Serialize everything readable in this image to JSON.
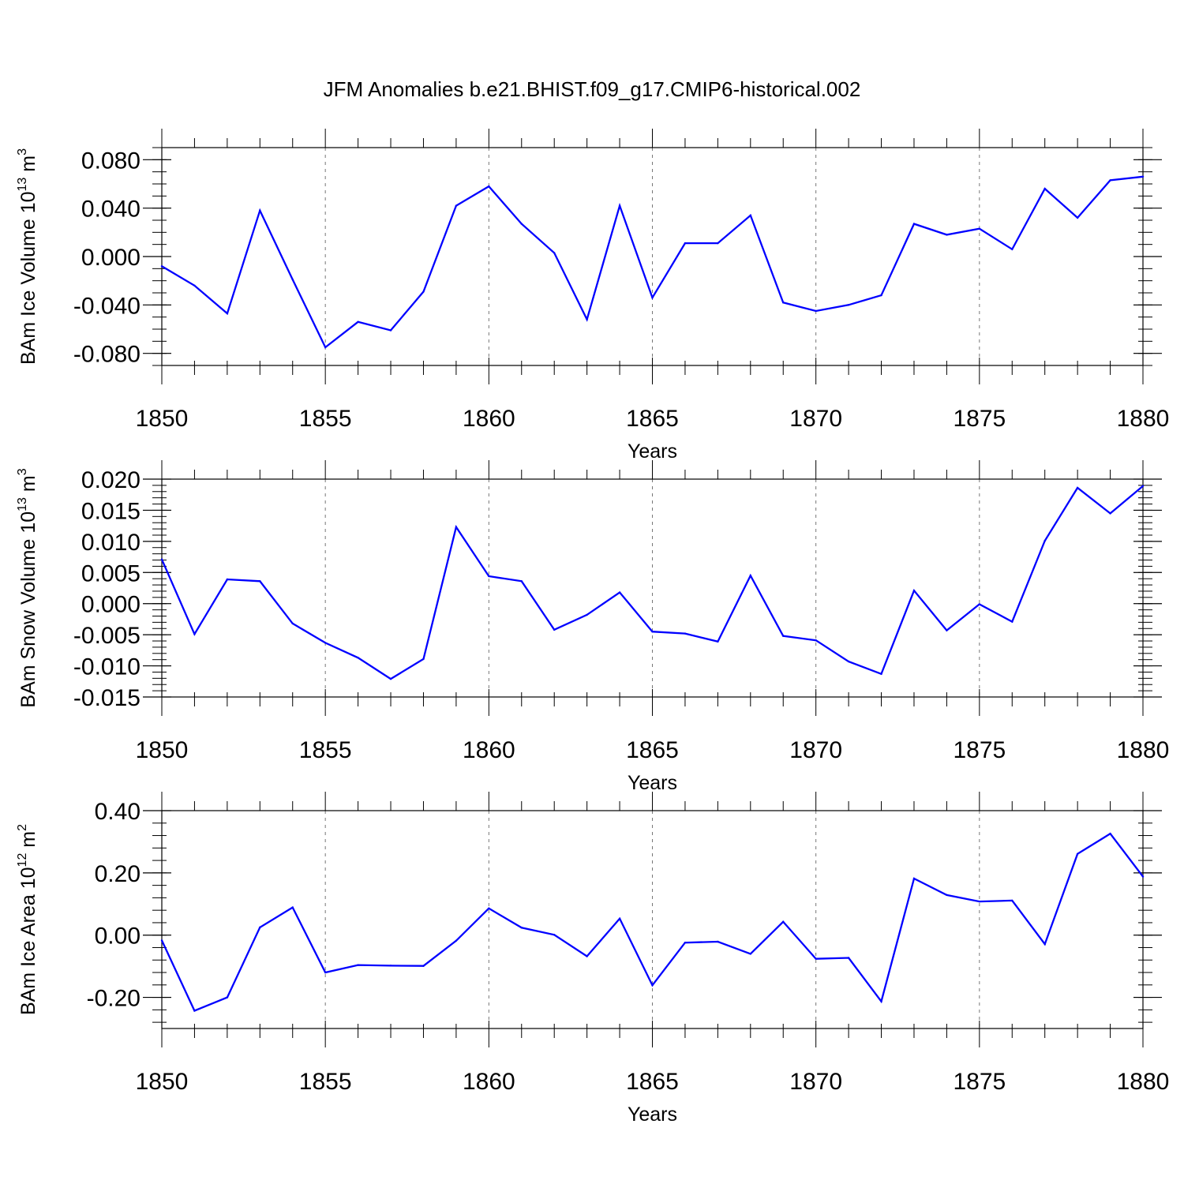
{
  "title": "JFM Anomalies b.e21.BHIST.f09_g17.CMIP6-historical.002",
  "colors": {
    "line": "#0000ff",
    "axis": "#000000",
    "grid": "#777777"
  },
  "chart_data": [
    {
      "type": "line",
      "title": "JFM Anomalies b.e21.BHIST.f09_g17.CMIP6-historical.002",
      "xlabel": "Years",
      "ylabel": "BAm Ice Volume 10",
      "ylabel_exponent": "13",
      "ylabel_unit": "m",
      "ylabel_unit_exponent": "3",
      "xlim": [
        1850,
        1880
      ],
      "ylim": [
        -0.09,
        0.09
      ],
      "xticks": [
        "1850",
        "1855",
        "1860",
        "1865",
        "1870",
        "1875",
        "1880"
      ],
      "yticks": [
        "0.080",
        "0.040",
        "0.000",
        "-0.040",
        "-0.080"
      ],
      "ytick_values": [
        0.08,
        0.04,
        0.0,
        -0.04,
        -0.08
      ],
      "ytick_minor_step": 0.01,
      "grid": "vertical dashed at major x ticks",
      "x": [
        1850,
        1851,
        1852,
        1853,
        1854,
        1855,
        1856,
        1857,
        1858,
        1859,
        1860,
        1861,
        1862,
        1863,
        1864,
        1865,
        1866,
        1867,
        1868,
        1869,
        1870,
        1871,
        1872,
        1873,
        1874,
        1875,
        1876,
        1877,
        1878,
        1879,
        1880
      ],
      "values": [
        -0.008,
        -0.024,
        -0.047,
        0.038,
        -0.019,
        -0.075,
        -0.054,
        -0.061,
        -0.029,
        0.042,
        0.058,
        0.027,
        0.003,
        -0.052,
        0.042,
        -0.034,
        0.011,
        0.011,
        0.034,
        -0.038,
        -0.045,
        -0.04,
        -0.032,
        0.027,
        0.018,
        0.023,
        0.006,
        0.056,
        0.032,
        0.063,
        0.066
      ]
    },
    {
      "type": "line",
      "xlabel": "Years",
      "ylabel": "BAm Snow Volume 10",
      "ylabel_exponent": "13",
      "ylabel_unit": "m",
      "ylabel_unit_exponent": "3",
      "xlim": [
        1850,
        1880
      ],
      "ylim": [
        -0.015,
        0.02
      ],
      "xticks": [
        "1850",
        "1855",
        "1860",
        "1865",
        "1870",
        "1875",
        "1880"
      ],
      "yticks": [
        "0.020",
        "0.015",
        "0.010",
        "0.005",
        "0.000",
        "-0.005",
        "-0.010",
        "-0.015"
      ],
      "ytick_values": [
        0.02,
        0.015,
        0.01,
        0.005,
        0.0,
        -0.005,
        -0.01,
        -0.015
      ],
      "ytick_minor_step": 0.001,
      "grid": "vertical dashed at major x ticks",
      "x": [
        1850,
        1851,
        1852,
        1853,
        1854,
        1855,
        1856,
        1857,
        1858,
        1859,
        1860,
        1861,
        1862,
        1863,
        1864,
        1865,
        1866,
        1867,
        1868,
        1869,
        1870,
        1871,
        1872,
        1873,
        1874,
        1875,
        1876,
        1877,
        1878,
        1879,
        1880
      ],
      "values": [
        0.0071,
        -0.0049,
        0.0039,
        0.0036,
        -0.0032,
        -0.0063,
        -0.0087,
        -0.0121,
        -0.0089,
        0.0123,
        0.0044,
        0.0036,
        -0.0042,
        -0.0018,
        0.0018,
        -0.0045,
        -0.0048,
        -0.0061,
        0.0045,
        -0.0052,
        -0.0059,
        -0.0093,
        -0.0113,
        0.0021,
        -0.0043,
        -0.0001,
        -0.0029,
        0.0101,
        0.0186,
        0.0145,
        0.0189
      ]
    },
    {
      "type": "line",
      "xlabel": "Years",
      "ylabel": "BAm Ice Area 10",
      "ylabel_exponent": "12",
      "ylabel_unit": "m",
      "ylabel_unit_exponent": "2",
      "xlim": [
        1850,
        1880
      ],
      "ylim": [
        -0.3,
        0.4
      ],
      "xticks": [
        "1850",
        "1855",
        "1860",
        "1865",
        "1870",
        "1875",
        "1880"
      ],
      "yticks": [
        "0.40",
        "0.20",
        "0.00",
        "-0.20"
      ],
      "ytick_values": [
        0.4,
        0.2,
        0.0,
        -0.2
      ],
      "ytick_minor_step": 0.04,
      "grid": "vertical dashed at major x ticks",
      "x": [
        1850,
        1851,
        1852,
        1853,
        1854,
        1855,
        1856,
        1857,
        1858,
        1859,
        1860,
        1861,
        1862,
        1863,
        1864,
        1865,
        1866,
        1867,
        1868,
        1869,
        1870,
        1871,
        1872,
        1873,
        1874,
        1875,
        1876,
        1877,
        1878,
        1879,
        1880
      ],
      "values": [
        -0.017,
        -0.243,
        -0.2,
        0.025,
        0.089,
        -0.12,
        -0.096,
        -0.098,
        -0.099,
        -0.018,
        0.086,
        0.024,
        0.001,
        -0.068,
        0.053,
        -0.161,
        -0.024,
        -0.021,
        -0.06,
        0.043,
        -0.076,
        -0.073,
        -0.213,
        0.182,
        0.129,
        0.108,
        0.111,
        -0.029,
        0.261,
        0.326,
        0.188
      ]
    }
  ]
}
